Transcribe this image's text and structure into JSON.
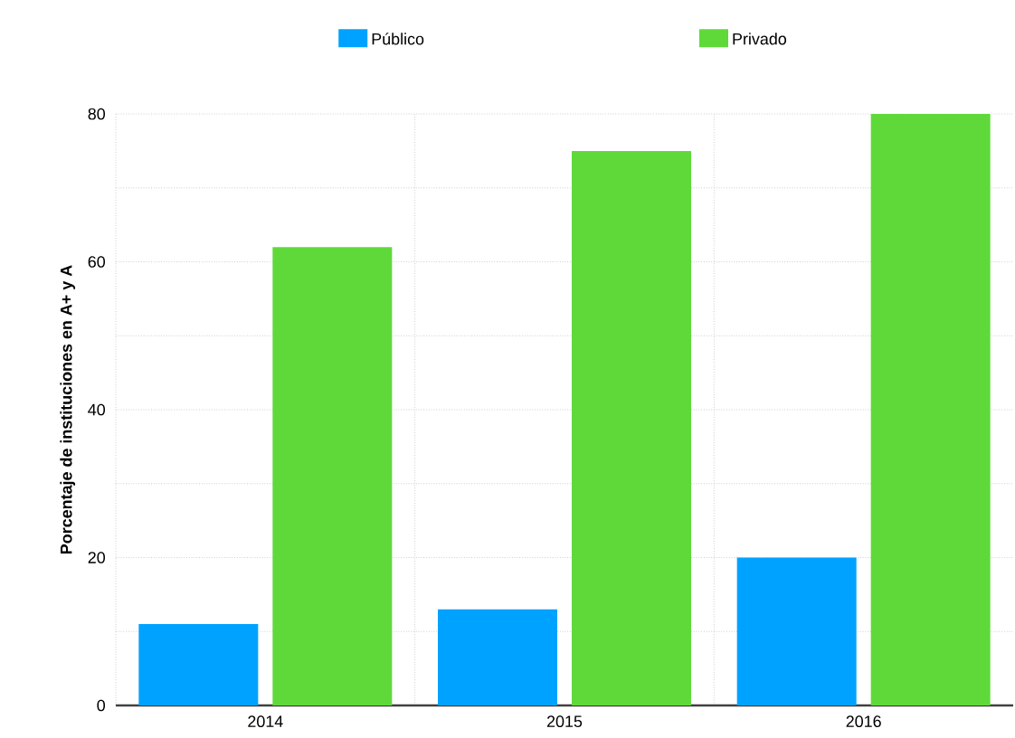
{
  "chart_data": {
    "type": "bar",
    "ylabel": "Porcentaje de instituciones en A+ y A",
    "categories": [
      "2014",
      "2015",
      "2016"
    ],
    "series": [
      {
        "name": "Público",
        "color": "#00a2ff",
        "values": [
          11,
          13,
          20
        ]
      },
      {
        "name": "Privado",
        "color": "#5fd93a",
        "values": [
          62,
          75,
          80
        ]
      }
    ],
    "ylim": [
      0,
      80
    ],
    "yticks": [
      0,
      {
        "value": 10,
        "label": null
      },
      20,
      {
        "value": 30,
        "label": null
      },
      40,
      {
        "value": 50,
        "label": null
      },
      60,
      {
        "value": 70,
        "label": null
      },
      80
    ],
    "grid": true,
    "legend": "top"
  }
}
